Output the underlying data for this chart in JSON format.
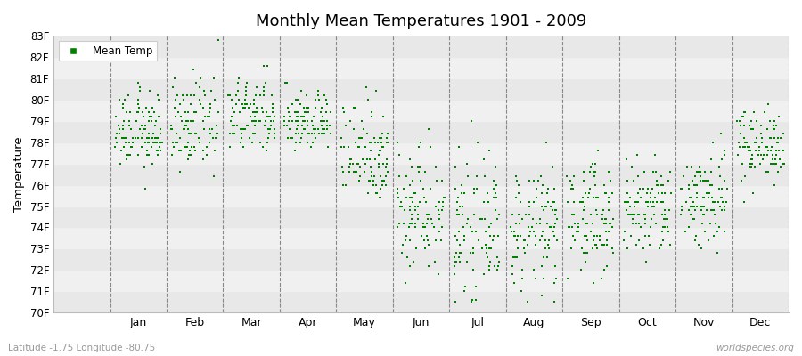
{
  "title": "Monthly Mean Temperatures 1901 - 2009",
  "ylabel": "Temperature",
  "subtitle_left": "Latitude -1.75 Longitude -80.75",
  "subtitle_right": "worldspecies.org",
  "ylim": [
    70,
    83
  ],
  "ytick_labels": [
    "70F",
    "71F",
    "72F",
    "73F",
    "74F",
    "75F",
    "76F",
    "77F",
    "78F",
    "79F",
    "80F",
    "81F",
    "82F",
    "83F"
  ],
  "ytick_values": [
    70,
    71,
    72,
    73,
    74,
    75,
    76,
    77,
    78,
    79,
    80,
    81,
    82,
    83
  ],
  "months": [
    "Jan",
    "Feb",
    "Mar",
    "Apr",
    "May",
    "Jun",
    "Jul",
    "Aug",
    "Sep",
    "Oct",
    "Nov",
    "Dec"
  ],
  "dot_color": "#008000",
  "scatter_alpha": 1.0,
  "dot_size": 4,
  "n_years": 109,
  "monthly_mean_temps": [
    78.5,
    78.8,
    79.2,
    79.0,
    77.6,
    75.0,
    73.9,
    73.9,
    74.5,
    74.8,
    75.4,
    77.9
  ],
  "monthly_std_temps": [
    0.9,
    1.0,
    0.9,
    0.7,
    1.2,
    1.5,
    1.5,
    1.4,
    1.3,
    1.2,
    1.2,
    0.85
  ],
  "band_colors": [
    "#f0f0f0",
    "#e8e8e8"
  ],
  "background_white": "#ffffff",
  "xlim_left": -0.5,
  "xlim_right": 12.5
}
